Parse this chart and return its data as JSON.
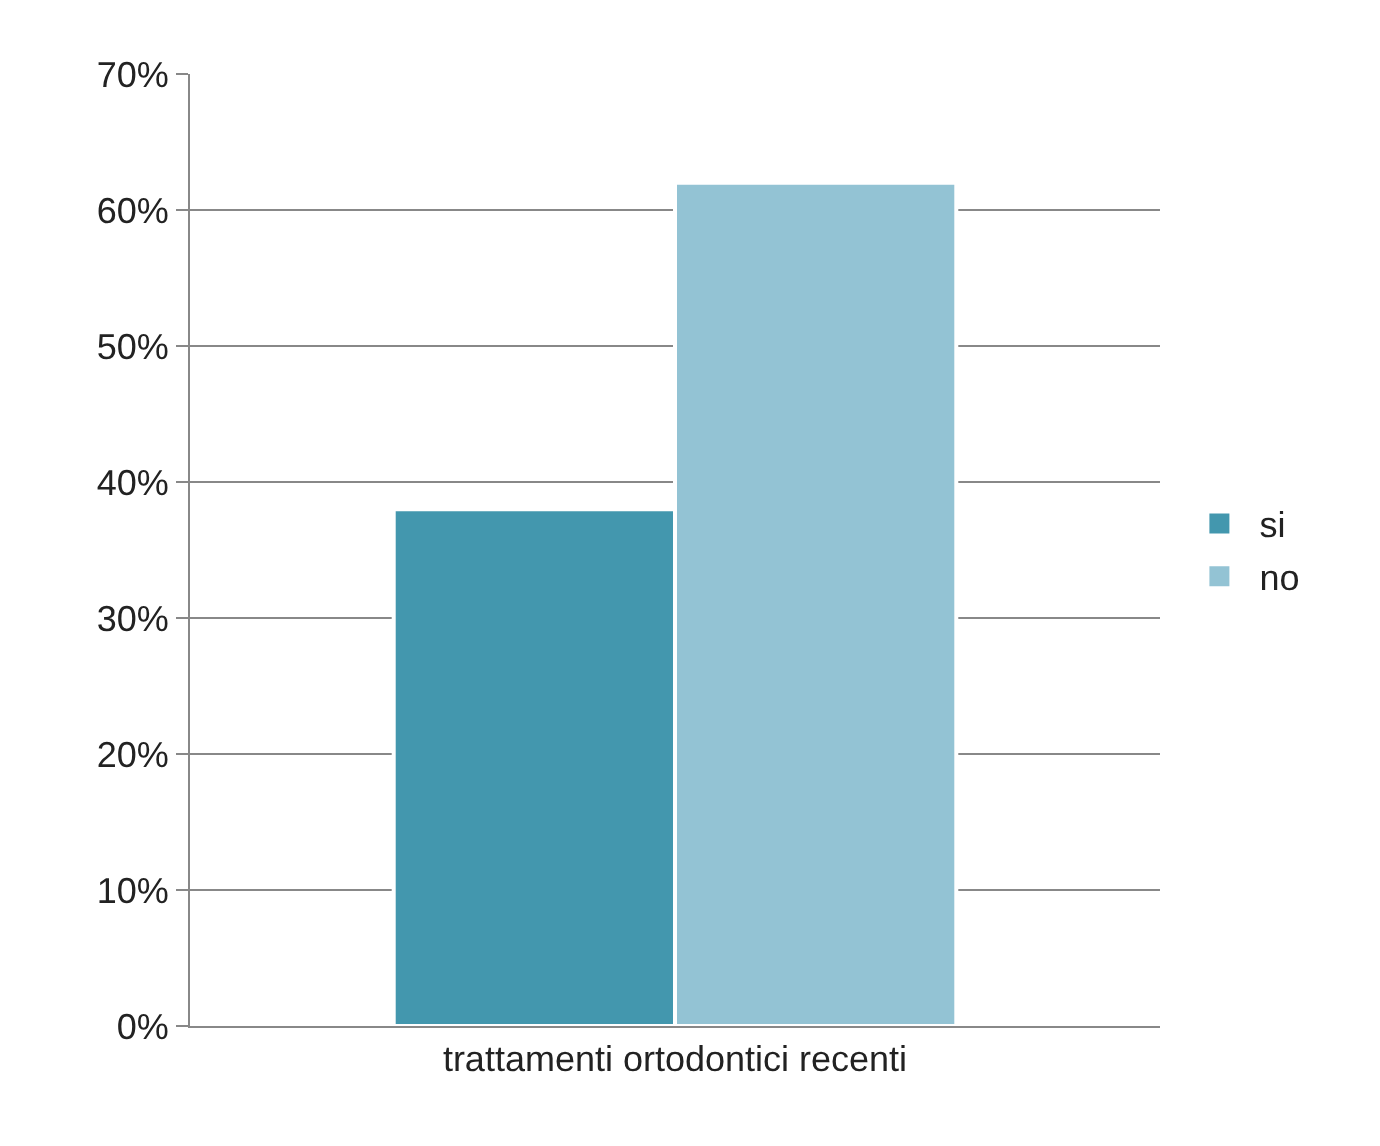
{
  "chart_data": {
    "type": "bar",
    "categories": [
      "trattamenti ortodontici recenti"
    ],
    "series": [
      {
        "name": "si",
        "color": "#4397ae",
        "values": [
          38
        ]
      },
      {
        "name": "no",
        "color": "#93c3d4",
        "values": [
          62
        ]
      }
    ],
    "ylim": [
      0,
      70
    ],
    "yticks": [
      {
        "value": 0,
        "label": "0%"
      },
      {
        "value": 10,
        "label": "10%"
      },
      {
        "value": 20,
        "label": "20%"
      },
      {
        "value": 30,
        "label": "30%"
      },
      {
        "value": 40,
        "label": "40%"
      },
      {
        "value": 50,
        "label": "50%"
      },
      {
        "value": 60,
        "label": "60%"
      },
      {
        "value": 70,
        "label": "70%"
      }
    ],
    "grid": "y",
    "legend": "right"
  }
}
